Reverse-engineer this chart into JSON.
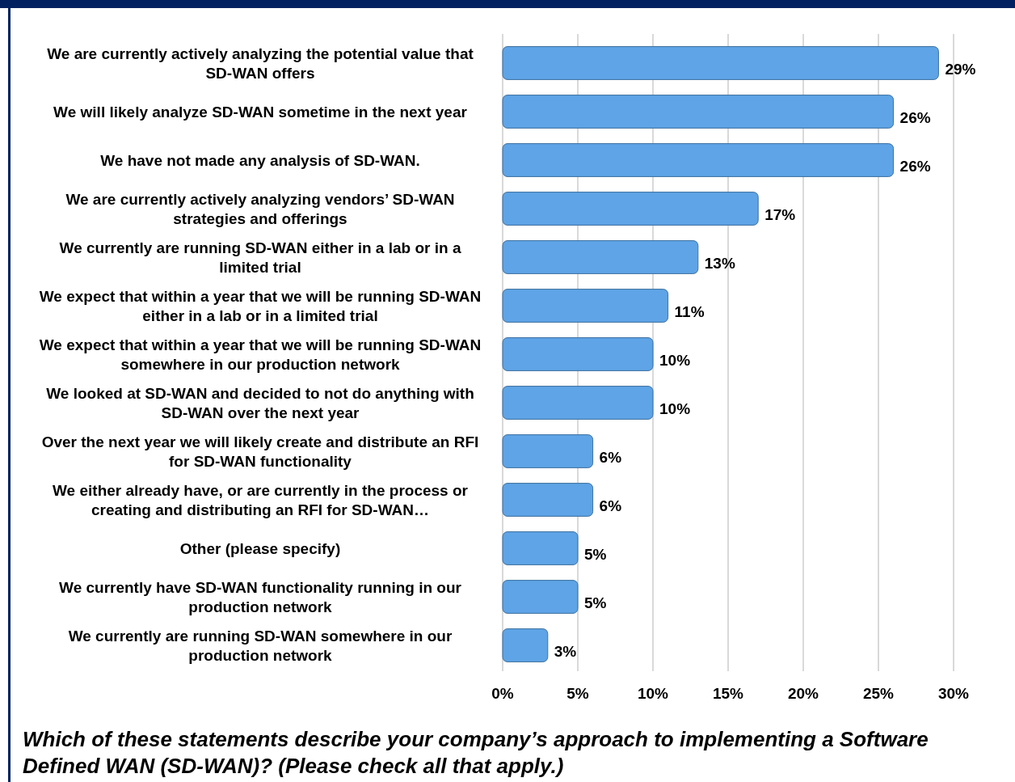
{
  "chart_data": {
    "type": "bar",
    "orientation": "horizontal",
    "categories": [
      "We are currently actively analyzing the potential value that SD-WAN offers",
      "We will likely analyze SD-WAN sometime in the next year",
      "We have not made any analysis of SD-WAN.",
      "We are currently actively analyzing vendors’ SD-WAN strategies and offerings",
      "We currently are running SD-WAN either in a lab or in a limited trial",
      "We expect that within a year that we will be running SD-WAN either in a lab or in a limited trial",
      "We expect that within a year that we will be running SD-WAN somewhere in our production network",
      "We looked at SD-WAN and decided to not do anything with SD-WAN over the next year",
      "Over the next year we will likely create and distribute an RFI for SD-WAN functionality",
      "We either already have, or are currently in the process or creating and distributing an RFI for SD-WAN…",
      "Other (please specify)",
      "We currently have SD-WAN functionality running in our production network",
      "We currently are running SD-WAN somewhere in our production network"
    ],
    "values": [
      29,
      26,
      26,
      17,
      13,
      11,
      10,
      10,
      6,
      6,
      5,
      5,
      3
    ],
    "color": "#5ea4e6",
    "xlim": [
      0,
      30
    ],
    "xticks": [
      {
        "value": 0,
        "label": "0%"
      },
      {
        "value": 5,
        "label": "5%"
      },
      {
        "value": 10,
        "label": "10%"
      },
      {
        "value": 15,
        "label": "15%"
      },
      {
        "value": 20,
        "label": "20%"
      },
      {
        "value": 25,
        "label": "25%"
      },
      {
        "value": 30,
        "label": "30%"
      }
    ],
    "grid": "x",
    "data_labels": true,
    "value_labels": [
      "29%",
      "26%",
      "26%",
      "17%",
      "13%",
      "11%",
      "10%",
      "10%",
      "6%",
      "6%",
      "5%",
      "5%",
      "3%"
    ],
    "annotations": [
      "Which of these statements describe your company’s approach to implementing a Software Defined WAN (SD-WAN)? (Please check all that apply.)"
    ]
  }
}
